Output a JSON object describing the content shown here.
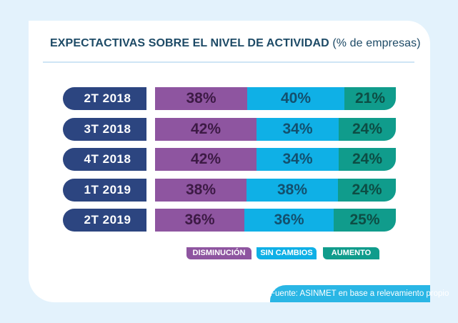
{
  "chart_data": {
    "type": "bar",
    "orientation": "horizontal",
    "stacked": true,
    "title": "EXPECTACTIVAS SOBRE EL NIVEL DE ACTIVIDAD",
    "subtitle": "(% de empresas)",
    "categories": [
      "2T 2018",
      "3T 2018",
      "4T 2018",
      "1T 2019",
      "2T 2019"
    ],
    "series": [
      {
        "name": "DISMINUCIÓN",
        "color": "#8e55a0",
        "text_color": "#3d1a45",
        "values": [
          38,
          42,
          42,
          38,
          36
        ]
      },
      {
        "name": "SIN CAMBIOS",
        "color": "#0fb0e6",
        "text_color": "#13506e",
        "values": [
          40,
          34,
          34,
          38,
          36
        ]
      },
      {
        "name": "AUMENTO",
        "color": "#109c8c",
        "text_color": "#0d4d44",
        "values": [
          21,
          24,
          24,
          24,
          25
        ]
      }
    ],
    "value_suffix": "%",
    "legend_position": "bottom",
    "grid": false
  },
  "colors": {
    "category_label_bg": "#2c4580",
    "background": "#e3f2fc",
    "source_bg": "#2ab6e5"
  },
  "source": "Fuente: ASINMET en base a relevamiento propio"
}
